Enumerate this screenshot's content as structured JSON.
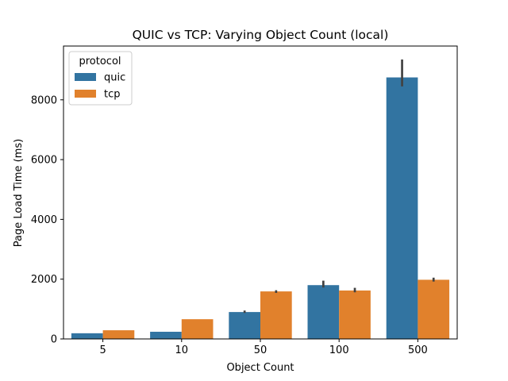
{
  "chart_data": {
    "type": "bar",
    "title": "QUIC vs TCP: Varying Object Count (local)",
    "xlabel": "Object Count",
    "ylabel": "Page Load Time (ms)",
    "categories": [
      "5",
      "10",
      "50",
      "100",
      "500"
    ],
    "ylim": [
      0,
      9800
    ],
    "yticks": [
      0,
      2000,
      4000,
      6000,
      8000
    ],
    "grid": false,
    "legend": {
      "title": "protocol",
      "position": "top-left"
    },
    "series": [
      {
        "name": "quic",
        "color": "#3274a1",
        "values": [
          190,
          240,
          900,
          1800,
          8750
        ],
        "err_low": [
          190,
          240,
          870,
          1720,
          8450
        ],
        "err_high": [
          190,
          240,
          950,
          1950,
          9350
        ]
      },
      {
        "name": "tcp",
        "color": "#e1812c",
        "values": [
          290,
          660,
          1590,
          1620,
          1980
        ],
        "err_low": [
          290,
          660,
          1540,
          1560,
          1920
        ],
        "err_high": [
          290,
          660,
          1630,
          1710,
          2050
        ]
      }
    ]
  }
}
